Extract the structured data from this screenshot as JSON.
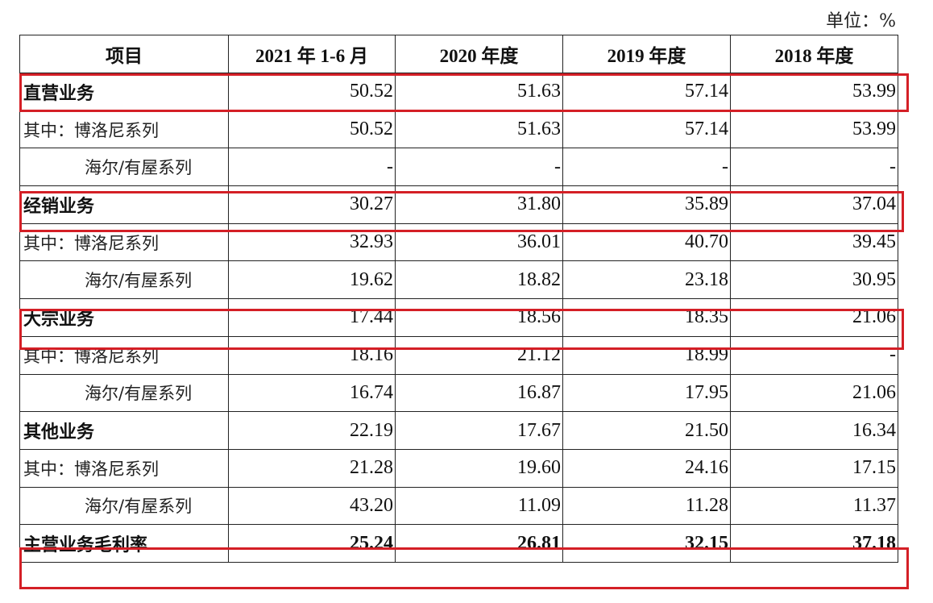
{
  "unit_label": "单位：%",
  "header": {
    "item": "项目",
    "col1": "2021 年 1-6 月",
    "col2": "2020 年度",
    "col3": "2019 年度",
    "col4": "2018 年度"
  },
  "rows": [
    {
      "label": "直营业务",
      "values": [
        "50.52",
        "51.63",
        "57.14",
        "53.99"
      ]
    },
    {
      "label": "其中：博洛尼系列",
      "values": [
        "50.52",
        "51.63",
        "57.14",
        "53.99"
      ]
    },
    {
      "label": "海尔/有屋系列",
      "values": [
        "-",
        "-",
        "-",
        "-"
      ]
    },
    {
      "label": "经销业务",
      "values": [
        "30.27",
        "31.80",
        "35.89",
        "37.04"
      ]
    },
    {
      "label": "其中：博洛尼系列",
      "values": [
        "32.93",
        "36.01",
        "40.70",
        "39.45"
      ]
    },
    {
      "label": "海尔/有屋系列",
      "values": [
        "19.62",
        "18.82",
        "23.18",
        "30.95"
      ]
    },
    {
      "label": "大宗业务",
      "values": [
        "17.44",
        "18.56",
        "18.35",
        "21.06"
      ]
    },
    {
      "label": "其中：博洛尼系列",
      "values": [
        "18.16",
        "21.12",
        "18.99",
        "-"
      ]
    },
    {
      "label": "海尔/有屋系列",
      "values": [
        "16.74",
        "16.87",
        "17.95",
        "21.06"
      ]
    },
    {
      "label": "其他业务",
      "values": [
        "22.19",
        "17.67",
        "21.50",
        "16.34"
      ]
    },
    {
      "label": "其中：博洛尼系列",
      "values": [
        "21.28",
        "19.60",
        "24.16",
        "17.15"
      ]
    },
    {
      "label": "海尔/有屋系列",
      "values": [
        "43.20",
        "11.09",
        "11.28",
        "11.37"
      ]
    },
    {
      "label": "主营业务毛利率",
      "values": [
        "25.24",
        "26.81",
        "32.15",
        "37.18"
      ]
    }
  ],
  "highlight_color": "#d41f26"
}
